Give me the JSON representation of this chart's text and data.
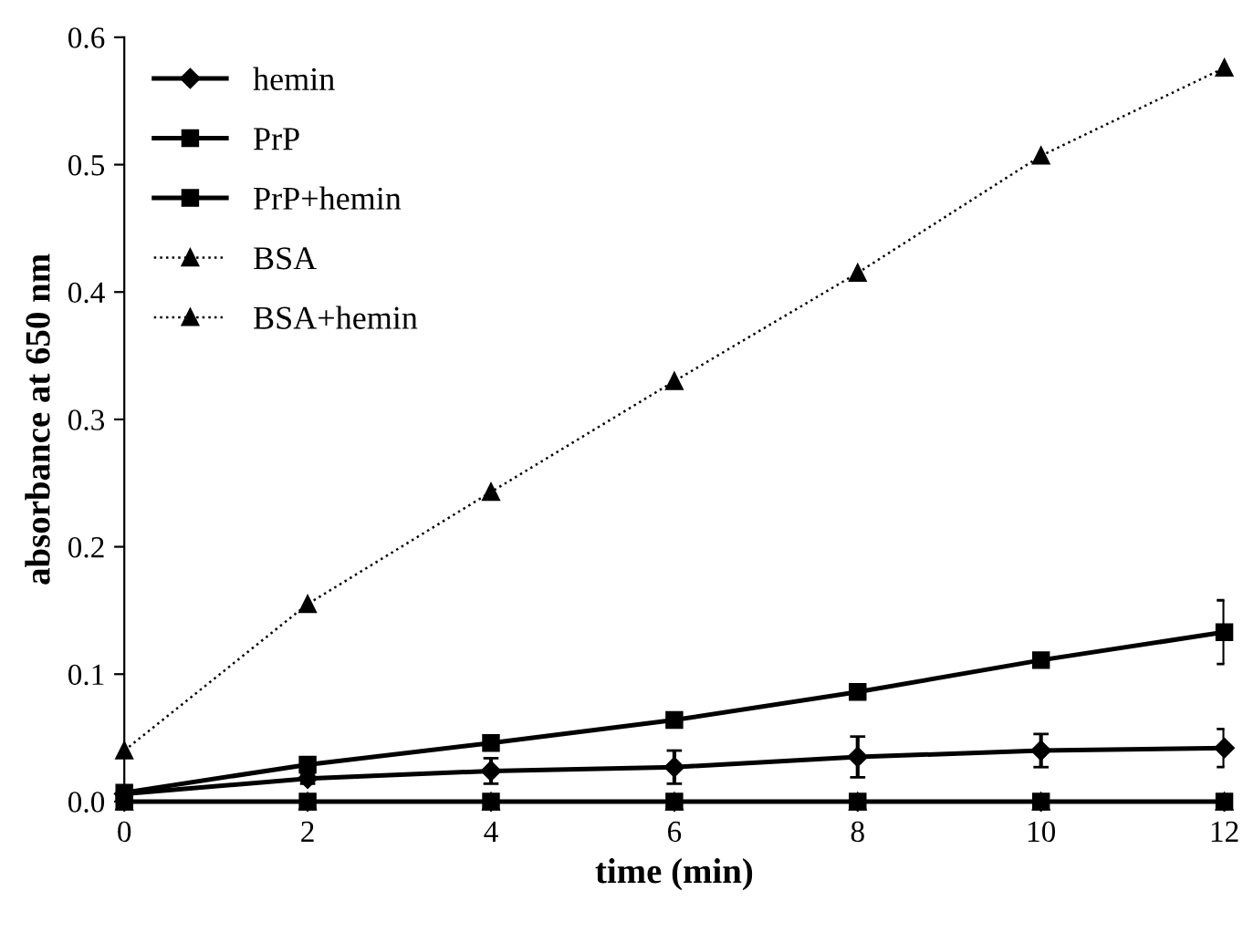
{
  "chart_data": {
    "type": "line",
    "xlabel": "time (min)",
    "ylabel": "absorbance at 650 nm",
    "x": [
      0,
      2,
      4,
      6,
      8,
      10,
      12
    ],
    "xlim": [
      0,
      12
    ],
    "xticks": [
      0,
      2,
      4,
      6,
      8,
      10,
      12
    ],
    "ylim": [
      0,
      0.6
    ],
    "yticks": [
      {
        "value": 0,
        "label": "0.0"
      },
      {
        "value": 0.1,
        "label": "0.1"
      },
      {
        "value": 0.2,
        "label": "0.2"
      },
      {
        "value": 0.3,
        "label": "0.3"
      },
      {
        "value": 0.4,
        "label": "0.4"
      },
      {
        "value": 0.5,
        "label": "0.5"
      },
      {
        "value": 0.6,
        "label": "0.6"
      }
    ],
    "grid": false,
    "legend": "top left",
    "series": [
      {
        "name": "hemin",
        "color": "#000000",
        "marker": "diamond",
        "line_style": "solid",
        "values": [
          0.006,
          0.018,
          0.024,
          0.027,
          0.035,
          0.04,
          0.042
        ],
        "errors": [
          null,
          0.004,
          0.01,
          0.013,
          0.016,
          0.013,
          0.015
        ]
      },
      {
        "name": "PrP",
        "color": "#000000",
        "marker": "square",
        "line_style": "solid",
        "values": [
          0,
          0,
          0,
          0,
          0,
          0,
          0
        ]
      },
      {
        "name": "PrP+hemin",
        "color": "#000000",
        "marker": "square",
        "line_style": "solid",
        "values": [
          0.007,
          0.029,
          0.046,
          0.064,
          0.086,
          0.111,
          0.133
        ],
        "errors": [
          null,
          null,
          null,
          null,
          null,
          null,
          0.025
        ]
      },
      {
        "name": "BSA",
        "color": "#000000",
        "marker": "triangle",
        "line_style": "dotted",
        "values": [
          0,
          0,
          0,
          0,
          0,
          0,
          0
        ]
      },
      {
        "name": "BSA+hemin",
        "color": "#000000",
        "marker": "triangle",
        "line_style": "dotted",
        "values": [
          0.04,
          0.155,
          0.243,
          0.33,
          0.415,
          0.507,
          0.576
        ]
      }
    ]
  }
}
